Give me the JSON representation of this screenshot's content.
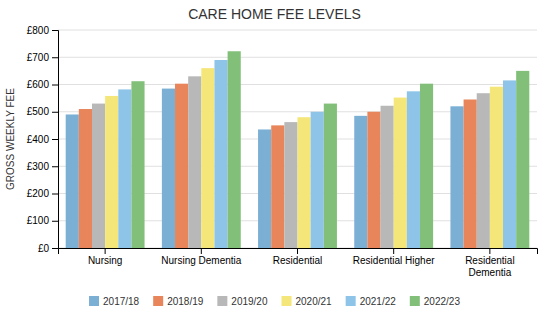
{
  "chart_data": {
    "type": "bar",
    "title": "CARE HOME FEE LEVELS",
    "ylabel": "GROSS WEEKLY FEE",
    "categories": [
      "Nursing",
      "Nursing Dementia",
      "Residential",
      "Residential Higher",
      "Residential\nDementia"
    ],
    "series": [
      {
        "name": "2017/18",
        "color": "#7bafd4",
        "values": [
          490,
          585,
          435,
          485,
          520
        ]
      },
      {
        "name": "2018/19",
        "color": "#e8855a",
        "values": [
          510,
          603,
          450,
          500,
          545
        ]
      },
      {
        "name": "2019/20",
        "color": "#b8b8b8",
        "values": [
          530,
          630,
          462,
          522,
          568
        ]
      },
      {
        "name": "2020/21",
        "color": "#f5e67a",
        "values": [
          558,
          660,
          480,
          552,
          592
        ]
      },
      {
        "name": "2021/22",
        "color": "#8ec4e8",
        "values": [
          582,
          690,
          500,
          575,
          615
        ]
      },
      {
        "name": "2022/23",
        "color": "#82c07a",
        "values": [
          612,
          722,
          530,
          603,
          650
        ]
      }
    ],
    "ylim": [
      0,
      800
    ],
    "yticks": [
      {
        "value": 0,
        "label": "£0"
      },
      {
        "value": 100,
        "label": "£100"
      },
      {
        "value": 200,
        "label": "£200"
      },
      {
        "value": 300,
        "label": "£300"
      },
      {
        "value": 400,
        "label": "£400"
      },
      {
        "value": 500,
        "label": "£500"
      },
      {
        "value": 600,
        "label": "£600"
      },
      {
        "value": 700,
        "label": "£700"
      },
      {
        "value": 800,
        "label": "£800"
      }
    ],
    "grid": true,
    "legend": "bottom"
  }
}
